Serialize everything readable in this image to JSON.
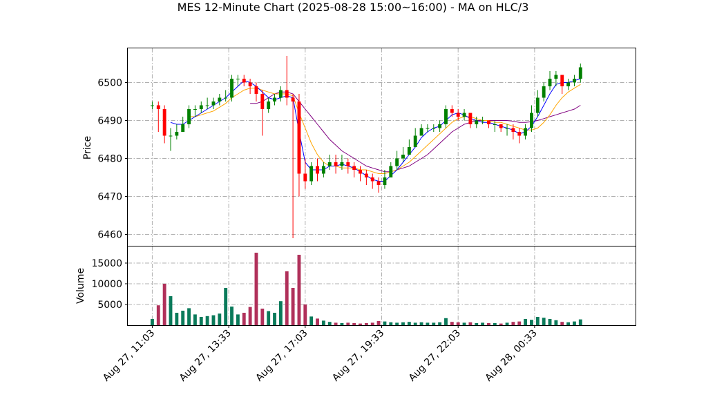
{
  "chart_data": {
    "type": "candlestick",
    "title": "MES 12-Minute Chart (2025-08-28 15:00~16:00) - MA on HLC/3",
    "price_panel": {
      "ylabel": "Price",
      "ylim": [
        6457,
        6509
      ],
      "yticks": [
        6460,
        6470,
        6480,
        6490,
        6500
      ]
    },
    "volume_panel": {
      "ylabel": "Volume",
      "ylim": [
        0,
        19000
      ],
      "yticks": [
        5000,
        10000,
        15000
      ]
    },
    "x_ticks": [
      {
        "label": "Aug 27, 11:03",
        "index": 0
      },
      {
        "label": "Aug 27, 13:33",
        "index": 12.5
      },
      {
        "label": "Aug 27, 17:03",
        "index": 25
      },
      {
        "label": "Aug 27, 19:33",
        "index": 37.5
      },
      {
        "label": "Aug 27, 22:03",
        "index": 50
      },
      {
        "label": "Aug 28, 00:33",
        "index": 62.5
      }
    ],
    "x_range": [
      -4,
      79
    ],
    "grid": true,
    "colors": {
      "up": "#008000",
      "down": "#ff0000",
      "ma_short": "#0000ff",
      "ma_mid": "#ffa500",
      "ma_long": "#800080"
    },
    "series": [
      {
        "name": "close",
        "values": [
          6494,
          6493,
          6486,
          6486,
          6487,
          6489,
          6493,
          6493,
          6494,
          6494,
          6495,
          6496,
          6496,
          6501,
          6501,
          6500,
          6499,
          6497,
          6493,
          6495,
          6496,
          6498,
          6496,
          6495,
          6476,
          6474,
          6478,
          6476,
          6478,
          6479,
          6478,
          6479,
          6478,
          6477,
          6476,
          6475,
          6474,
          6473,
          6475,
          6478,
          6480,
          6481,
          6483,
          6486,
          6488,
          6488,
          6488,
          6489,
          6493,
          6492,
          6491,
          6492,
          6489,
          6490,
          6490,
          6489,
          6489,
          6488,
          6488,
          6487,
          6486,
          6488,
          6492,
          6496,
          6499,
          6501,
          6502,
          6499,
          6500,
          6501,
          6504
        ]
      },
      {
        "name": "open",
        "values": [
          6494,
          6494,
          6493,
          6486,
          6486,
          6487,
          6489,
          6493,
          6493,
          6494,
          6494,
          6495,
          6496,
          6496,
          6501,
          6501,
          6500,
          6499,
          6497,
          6493,
          6495,
          6496,
          6498,
          6496,
          6495,
          6476,
          6474,
          6478,
          6476,
          6478,
          6479,
          6478,
          6479,
          6478,
          6477,
          6476,
          6475,
          6474,
          6473,
          6475,
          6478,
          6480,
          6481,
          6483,
          6486,
          6488,
          6488,
          6488,
          6489,
          6493,
          6492,
          6491,
          6492,
          6489,
          6490,
          6490,
          6489,
          6489,
          6488,
          6488,
          6487,
          6486,
          6488,
          6492,
          6496,
          6499,
          6501,
          6502,
          6499,
          6500,
          6501
        ]
      },
      {
        "name": "high",
        "values": [
          6495,
          6495,
          6494,
          6488,
          6489,
          6491,
          6494,
          6494,
          6495,
          6496,
          6496,
          6497,
          6498,
          6502,
          6502,
          6502,
          6501,
          6500,
          6498,
          6496,
          6497,
          6499,
          6507,
          6497,
          6497,
          6480,
          6479,
          6480,
          6479,
          6481,
          6481,
          6481,
          6480,
          6479,
          6478,
          6477,
          6476,
          6475,
          6477,
          6479,
          6482,
          6483,
          6485,
          6488,
          6489,
          6489,
          6489,
          6490,
          6494,
          6494,
          6493,
          6493,
          6492,
          6491,
          6491,
          6490,
          6490,
          6489,
          6489,
          6489,
          6488,
          6489,
          6494,
          6498,
          6500,
          6503,
          6503,
          6502,
          6501,
          6502,
          6505
        ]
      },
      {
        "name": "low",
        "values": [
          6493,
          6487,
          6484,
          6482,
          6485,
          6487,
          6488,
          6491,
          6492,
          6493,
          6493,
          6494,
          6495,
          6495,
          6499,
          6499,
          6497,
          6495,
          6486,
          6492,
          6494,
          6495,
          6494,
          6459,
          6470,
          6472,
          6473,
          6474,
          6475,
          6477,
          6476,
          6477,
          6476,
          6475,
          6474,
          6473,
          6472,
          6471,
          6472,
          6475,
          6477,
          6479,
          6481,
          6483,
          6486,
          6487,
          6487,
          6487,
          6488,
          6491,
          6490,
          6490,
          6488,
          6488,
          6489,
          6488,
          6487,
          6487,
          6486,
          6485,
          6484,
          6485,
          6487,
          6491,
          6495,
          6498,
          6499,
          6497,
          6498,
          6499,
          6500
        ]
      },
      {
        "name": "volume",
        "values": [
          1500,
          4800,
          10000,
          7000,
          3000,
          3500,
          4100,
          2600,
          2000,
          2200,
          2400,
          2800,
          9000,
          4500,
          2600,
          3000,
          4400,
          17500,
          4000,
          3400,
          3000,
          5800,
          13000,
          9000,
          17000,
          5000,
          2100,
          1600,
          1100,
          800,
          600,
          500,
          600,
          500,
          400,
          500,
          600,
          1000,
          900,
          700,
          600,
          700,
          800,
          600,
          700,
          600,
          600,
          700,
          1700,
          800,
          700,
          600,
          700,
          500,
          600,
          500,
          500,
          400,
          600,
          800,
          900,
          1500,
          1300,
          2000,
          1800,
          1500,
          1200,
          800,
          700,
          900,
          1400
        ]
      },
      {
        "name": "ma_short",
        "values": [
          null,
          null,
          null,
          6489.5,
          6489,
          6489,
          6490,
          6491,
          6492,
          6493,
          6494,
          6495,
          6496,
          6497.5,
          6499,
          6500.5,
          6500,
          6499,
          6497.5,
          6496,
          6495.5,
          6496,
          6496.5,
          6496,
          6487,
          6479,
          6477,
          6477,
          6477,
          6478,
          6478,
          6478.5,
          6478,
          6477.5,
          6476.5,
          6475.5,
          6474.5,
          6474,
          6474,
          6475.5,
          6477,
          6479,
          6481,
          6483,
          6485.5,
          6487,
          6488,
          6488.5,
          6490,
          6491.5,
          6492,
          6491.5,
          6490.5,
          6490,
          6489.5,
          6489.5,
          6489,
          6488.5,
          6488,
          6487.5,
          6486.5,
          6487,
          6488.5,
          6491,
          6494,
          6497,
          6499.5,
          6500,
          6500,
          6500.5,
          6501
        ]
      },
      {
        "name": "ma_mid",
        "values": [
          null,
          null,
          null,
          null,
          null,
          null,
          6491,
          6491,
          6491.5,
          6492,
          6492.5,
          6493.5,
          6494.5,
          6496,
          6497,
          6498,
          6498.5,
          6498.5,
          6498,
          6497.5,
          6497,
          6497,
          6497,
          6496.5,
          6492,
          6488,
          6484,
          6481,
          6479,
          6478,
          6478,
          6477.5,
          6477.5,
          6477.5,
          6477,
          6477,
          6476.5,
          6476,
          6476,
          6476.5,
          6477,
          6478,
          6479,
          6480.5,
          6482,
          6483.5,
          6485,
          6486.5,
          6488,
          6489.5,
          6490.5,
          6491,
          6491,
          6490.5,
          6490,
          6490,
          6489.5,
          6489.5,
          6489,
          6488.5,
          6488,
          6487.5,
          6487.5,
          6488,
          6489.5,
          6491.5,
          6494,
          6496,
          6497.5,
          6498.5,
          6499.5
        ]
      },
      {
        "name": "ma_long",
        "values": [
          null,
          null,
          null,
          null,
          null,
          null,
          null,
          null,
          null,
          null,
          null,
          null,
          null,
          null,
          null,
          null,
          6494.5,
          6494.5,
          6495,
          6496,
          6497,
          6497.5,
          6497.5,
          6497,
          6495,
          6493,
          6491,
          6489,
          6487,
          6485,
          6483.5,
          6482,
          6481,
          6480,
          6479,
          6478,
          6477.5,
          6477,
          6476.5,
          6476.5,
          6477,
          6477.5,
          6478,
          6479,
          6480,
          6481,
          6482.5,
          6484,
          6485.5,
          6487,
          6488,
          6489,
          6489.5,
          6490,
          6490,
          6490,
          6490,
          6490,
          6490,
          6489.8,
          6489.5,
          6489.5,
          6489.7,
          6490,
          6490.5,
          6491,
          6491.5,
          6492,
          6492.5,
          6493,
          6494
        ]
      }
    ]
  }
}
